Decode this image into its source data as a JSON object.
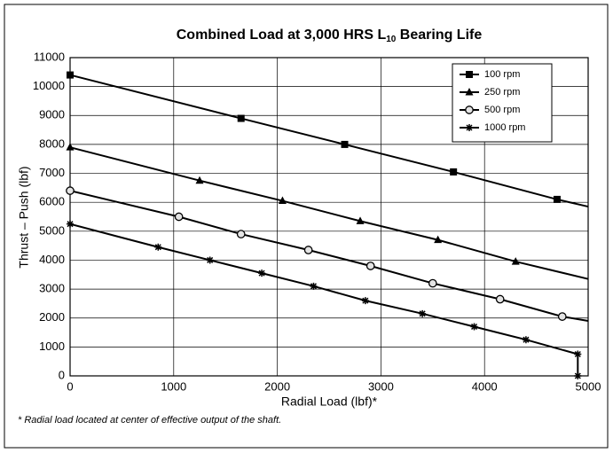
{
  "chart_data": {
    "type": "line",
    "title": "Combined Load at 3,000 HRS L",
    "title_subscript": "10",
    "title_suffix": " Bearing Life",
    "x_label": "Radial Load (lbf)*",
    "y_label": "Thrust – Push (lbf)",
    "footnote": "* Radial load located at center of effective output of the shaft.",
    "xlim": [
      0,
      5000
    ],
    "xticks": [
      0,
      1000,
      2000,
      3000,
      4000,
      5000
    ],
    "ylim": [
      0,
      11000
    ],
    "yticks": [
      0,
      1000,
      2000,
      3000,
      4000,
      5000,
      6000,
      7000,
      8000,
      9000,
      10000,
      11000
    ],
    "grid": true,
    "legend": "top-right",
    "series": [
      {
        "name": "100 rpm",
        "color": "#000000",
        "marker": "square",
        "x": [
          0,
          1650,
          2650,
          3700,
          4700
        ],
        "values": [
          10400,
          8900,
          8000,
          7050,
          6100
        ],
        "line_end": {
          "x": 5000,
          "value": 5850
        }
      },
      {
        "name": "250 rpm",
        "color": "#000000",
        "marker": "triangle",
        "x": [
          0,
          1250,
          2050,
          2800,
          3550,
          4300
        ],
        "values": [
          7900,
          6750,
          6050,
          5350,
          4700,
          3950
        ],
        "line_end": {
          "x": 5000,
          "value": 3350
        }
      },
      {
        "name": "500 rpm",
        "color": "#000000",
        "marker": "circle",
        "x": [
          0,
          1050,
          1650,
          2300,
          2900,
          3500,
          4150,
          4750
        ],
        "values": [
          6400,
          5500,
          4900,
          4350,
          3800,
          3200,
          2650,
          2050
        ],
        "line_end": {
          "x": 5000,
          "value": 1900
        }
      },
      {
        "name": "1000 rpm",
        "color": "#000000",
        "marker": "star",
        "x": [
          0,
          850,
          1350,
          1850,
          2350,
          2850,
          3400,
          3900,
          4400,
          4900,
          4900
        ],
        "values": [
          5250,
          4450,
          4000,
          3550,
          3100,
          2600,
          2150,
          1700,
          1250,
          750,
          0
        ]
      }
    ]
  }
}
